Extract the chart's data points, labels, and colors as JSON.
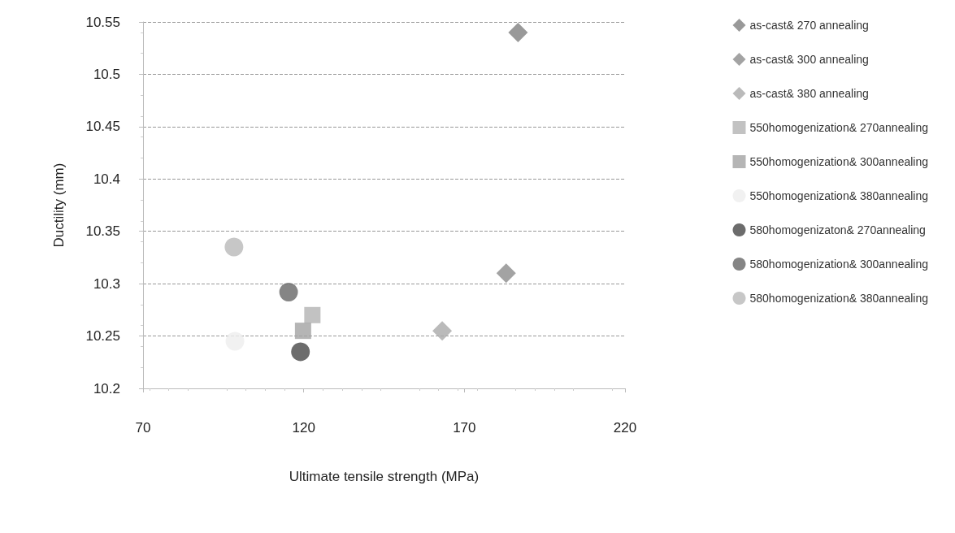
{
  "chart_data": {
    "type": "scatter",
    "xlabel": "Ultimate tensile strength (MPa)",
    "ylabel": "Ductility (mm)",
    "xlim": [
      70,
      220
    ],
    "xticks": [
      70,
      120,
      170,
      220
    ],
    "ylim": [
      10.2,
      10.55
    ],
    "yticks": [
      10.2,
      10.25,
      10.3,
      10.35,
      10.4,
      10.45,
      10.5,
      10.55
    ],
    "grid": "y",
    "legend": "right",
    "series": [
      {
        "name": "as-cast& 270 annealing",
        "color": "#7f7f7f",
        "marker": "diamond",
        "x": [
          186.7
        ],
        "values": [
          10.54
        ]
      },
      {
        "name": "as-cast& 300 annealing",
        "color": "#8c8c8c",
        "marker": "diamond",
        "x": [
          183
        ],
        "values": [
          10.31
        ]
      },
      {
        "name": "as-cast& 380 annealing",
        "color": "#a9a9a9",
        "marker": "diamond",
        "x": [
          163.1
        ],
        "values": [
          10.255
        ]
      },
      {
        "name": "550homogenization& 270annealing",
        "color": "#b3b3b3",
        "marker": "square",
        "x": [
          122.7
        ],
        "values": [
          10.27
        ]
      },
      {
        "name": "550homogenization& 300annealing",
        "color": "#a3a3a3",
        "marker": "square",
        "x": [
          119.8
        ],
        "values": [
          10.255
        ]
      },
      {
        "name": "550homogenization& 380annealing",
        "color": "#ededed",
        "marker": "circle",
        "x": [
          98.6
        ],
        "values": [
          10.245
        ]
      },
      {
        "name": "580homogenizaton& 270annealing",
        "color": "#474747",
        "marker": "circle",
        "x": [
          119
        ],
        "values": [
          10.235
        ]
      },
      {
        "name": "580homogenization& 300annealing",
        "color": "#666666",
        "marker": "circle",
        "x": [
          115.3
        ],
        "values": [
          10.292
        ]
      },
      {
        "name": "580homogenization& 380annealing",
        "color": "#b9b9b9",
        "marker": "circle",
        "x": [
          98.3
        ],
        "values": [
          10.335
        ]
      }
    ]
  }
}
